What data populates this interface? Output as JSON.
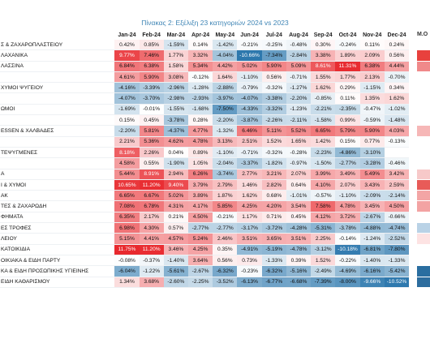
{
  "chart_data": {
    "type": "table",
    "title": "Πίνακας 2: Εξέλιξη 23 κατηγοριών 2024 vs 2023",
    "extra_column_header": "Μ.Ο",
    "columns": [
      "Jan-24",
      "Feb-24",
      "Mar-24",
      "Apr-24",
      "May-24",
      "Jun-24",
      "Jul-24",
      "Aug-24",
      "Sep-24",
      "Oct-24",
      "Nov-24",
      "Dec-24"
    ],
    "rows": [
      {
        "label": "Σ & ΖΑΧΑΡΟΠΛΑΣΤΕΙΟΥ",
        "values": [
          0.42,
          0.85,
          -1.59,
          0.14,
          -1.42,
          -0.21,
          -0.25,
          -0.48,
          0.3,
          -0.24,
          0.11,
          0.24
        ]
      },
      {
        "label": "ΛΑΧΑΝΙΚΑ",
        "values": [
          9.77,
          7.46,
          1.77,
          3.32,
          -4.04,
          -10.66,
          -7.34,
          -2.84,
          3.38,
          1.89,
          2.09,
          0.56
        ]
      },
      {
        "label": "ΛΑΣΣΙΝΑ",
        "values": [
          6.84,
          6.38,
          1.58,
          5.34,
          4.42,
          5.02,
          5.9,
          5.09,
          8.61,
          11.31,
          6.38,
          4.44
        ]
      },
      {
        "label": "",
        "values": [
          4.61,
          5.9,
          3.08,
          -0.12,
          1.64,
          -1.1,
          0.56,
          -0.71,
          1.55,
          1.77,
          2.13,
          -0.7
        ]
      },
      {
        "label": "ΧΥΜΟΙ ΨΥΓΕΙΟΥ",
        "values": [
          -4.16,
          -3.39,
          -2.96,
          -1.28,
          -2.88,
          -0.79,
          -0.32,
          -1.27,
          1.62,
          0.29,
          -1.15,
          0.34
        ]
      },
      {
        "label": "",
        "values": [
          -4.07,
          -3.7,
          -2.98,
          -2.93,
          -3.97,
          -4.07,
          -3.38,
          -2.2,
          -0.85,
          0.11,
          1.35,
          1.62
        ]
      },
      {
        "label": "ΩΜΟΙ",
        "values": [
          -1.69,
          -0.01,
          -1.55,
          -1.68,
          -7.5,
          -4.33,
          -3.32,
          -1.23,
          -2.21,
          -2.35,
          -0.47,
          -1.02
        ]
      },
      {
        "label": "",
        "values": [
          0.15,
          0.45,
          -3.78,
          0.28,
          -2.2,
          -3.87,
          -2.26,
          -2.11,
          -1.58,
          0.99,
          -0.59,
          -1.48
        ]
      },
      {
        "label": "ESSEN & ΧΑΛΒΑΔΕΣ",
        "values": [
          -2.2,
          5.81,
          -4.37,
          4.77,
          -1.32,
          6.46,
          5.11,
          5.52,
          6.65,
          5.79,
          5.9,
          4.03
        ]
      },
      {
        "label": "",
        "values": [
          2.21,
          5.36,
          4.62,
          4.78,
          3.13,
          2.51,
          1.52,
          1.65,
          1.42,
          0.15,
          0.77,
          -0.13
        ]
      },
      {
        "label": "ΤΕΨΥΓΜΕΝΕΣ",
        "values": [
          8.18,
          2.26,
          0.04,
          0.89,
          -1.1,
          -0.71,
          -0.32,
          -0.28,
          -2.23,
          -4.86,
          -3.1,
          0
        ]
      },
      {
        "label": "",
        "values": [
          4.58,
          0.55,
          -1.9,
          1.05,
          -2.04,
          -3.37,
          -1.82,
          -0.97,
          -1.5,
          -2.77,
          -3.28,
          -0.46
        ]
      },
      {
        "label": "Α",
        "values": [
          5.44,
          8.91,
          2.94,
          6.26,
          -3.74,
          2.77,
          3.21,
          2.07,
          3.99,
          3.49,
          5.49,
          3.42
        ]
      },
      {
        "label": "Ι & ΧΥΜΟΙ",
        "values": [
          10.65,
          11.2,
          9.4,
          3.79,
          2.79,
          1.46,
          2.82,
          0.64,
          4.1,
          2.07,
          3.43,
          2.59
        ]
      },
      {
        "label": "ΑΚ",
        "values": [
          6.65,
          6.67,
          5.02,
          3.89,
          1.87,
          1.62,
          0.68,
          -1.01,
          -0.57,
          -1.1,
          -2.09,
          -2.14
        ]
      },
      {
        "label": "ΤΕΣ & ΖΑΧΑΡΩΔΗ",
        "values": [
          7.08,
          6.78,
          4.31,
          4.17,
          5.85,
          4.25,
          4.2,
          3.54,
          7.58,
          4.78,
          3.45,
          4.5
        ]
      },
      {
        "label": "ΦΗΜΑΤΑ",
        "values": [
          6.35,
          2.17,
          0.21,
          4.5,
          -0.21,
          1.17,
          0.71,
          0.45,
          4.12,
          3.72,
          -2.67,
          -0.66
        ]
      },
      {
        "label": "ΕΣ ΤΡΟΦΕΣ",
        "values": [
          6.98,
          4.3,
          0.57,
          -2.77,
          -2.77,
          -3.17,
          -3.72,
          -4.28,
          -5.31,
          -3.78,
          -4.88,
          -4.74
        ]
      },
      {
        "label": "ΛΕΙΟΥ",
        "values": [
          5.15,
          4.41,
          4.57,
          5.24,
          2.46,
          3.51,
          3.65,
          3.51,
          2.25,
          -0.14,
          -1.24,
          -2.52
        ]
      },
      {
        "label": "ΚΑΤΟΙΚΙΔΙΑ",
        "values": [
          11.75,
          11.2,
          3.46,
          4.25,
          0.35,
          -4.91,
          -5.19,
          -4.78,
          -3.12,
          -10.18,
          -6.81,
          -7.8
        ]
      },
      {
        "label": "ΟΙΚΙΑΚΑ & ΕΙΔΗ ΠΑΡΤΥ",
        "values": [
          -0.08,
          -0.37,
          -1.4,
          3.64,
          0.56,
          0.73,
          -1.33,
          0.39,
          1.52,
          -0.22,
          -1.4,
          -1.33
        ]
      },
      {
        "label": "ΚΑ & ΕΙΔΗ ΠΡΟΣΩΠΙΚΗΣ ΥΓΙΕΙΝΗΣ",
        "values": [
          -6.04,
          -1.22,
          -5.61,
          -2.67,
          -6.32,
          -0.23,
          -6.32,
          -5.16,
          -2.49,
          -4.69,
          -6.16,
          -5.42
        ]
      },
      {
        "label": "ΕΙΔΗ ΚΑΘΑΡΙΣΜΟΥ",
        "values": [
          1.34,
          3.68,
          -2.6,
          -2.25,
          -3.52,
          -6.13,
          -6.77,
          -6.68,
          -7.39,
          -8.0,
          -9.66,
          -10.52
        ]
      }
    ],
    "extra_column_colors": [
      "#ffffff",
      "#e8413d",
      "#f0898a",
      "#ffffff",
      "#ffffff",
      "#ffffff",
      "#ffffff",
      "#ffffff",
      "#f6b7b7",
      "#ffffff",
      "#ffffff",
      "#ffffff",
      "#f7c9c9",
      "#e85b58",
      "#f3a5a5",
      "#f3a3a3",
      "#ffffff",
      "#b9d2e6",
      "#fde3e3",
      "#ffffff",
      "#ffffff",
      "#2a6ea0",
      "#2d6d9e"
    ],
    "color_scale": {
      "negative": "#1f6fa8",
      "neutral": "#ffffff",
      "positive": "#e8292e",
      "max_abs": 11.5
    }
  }
}
